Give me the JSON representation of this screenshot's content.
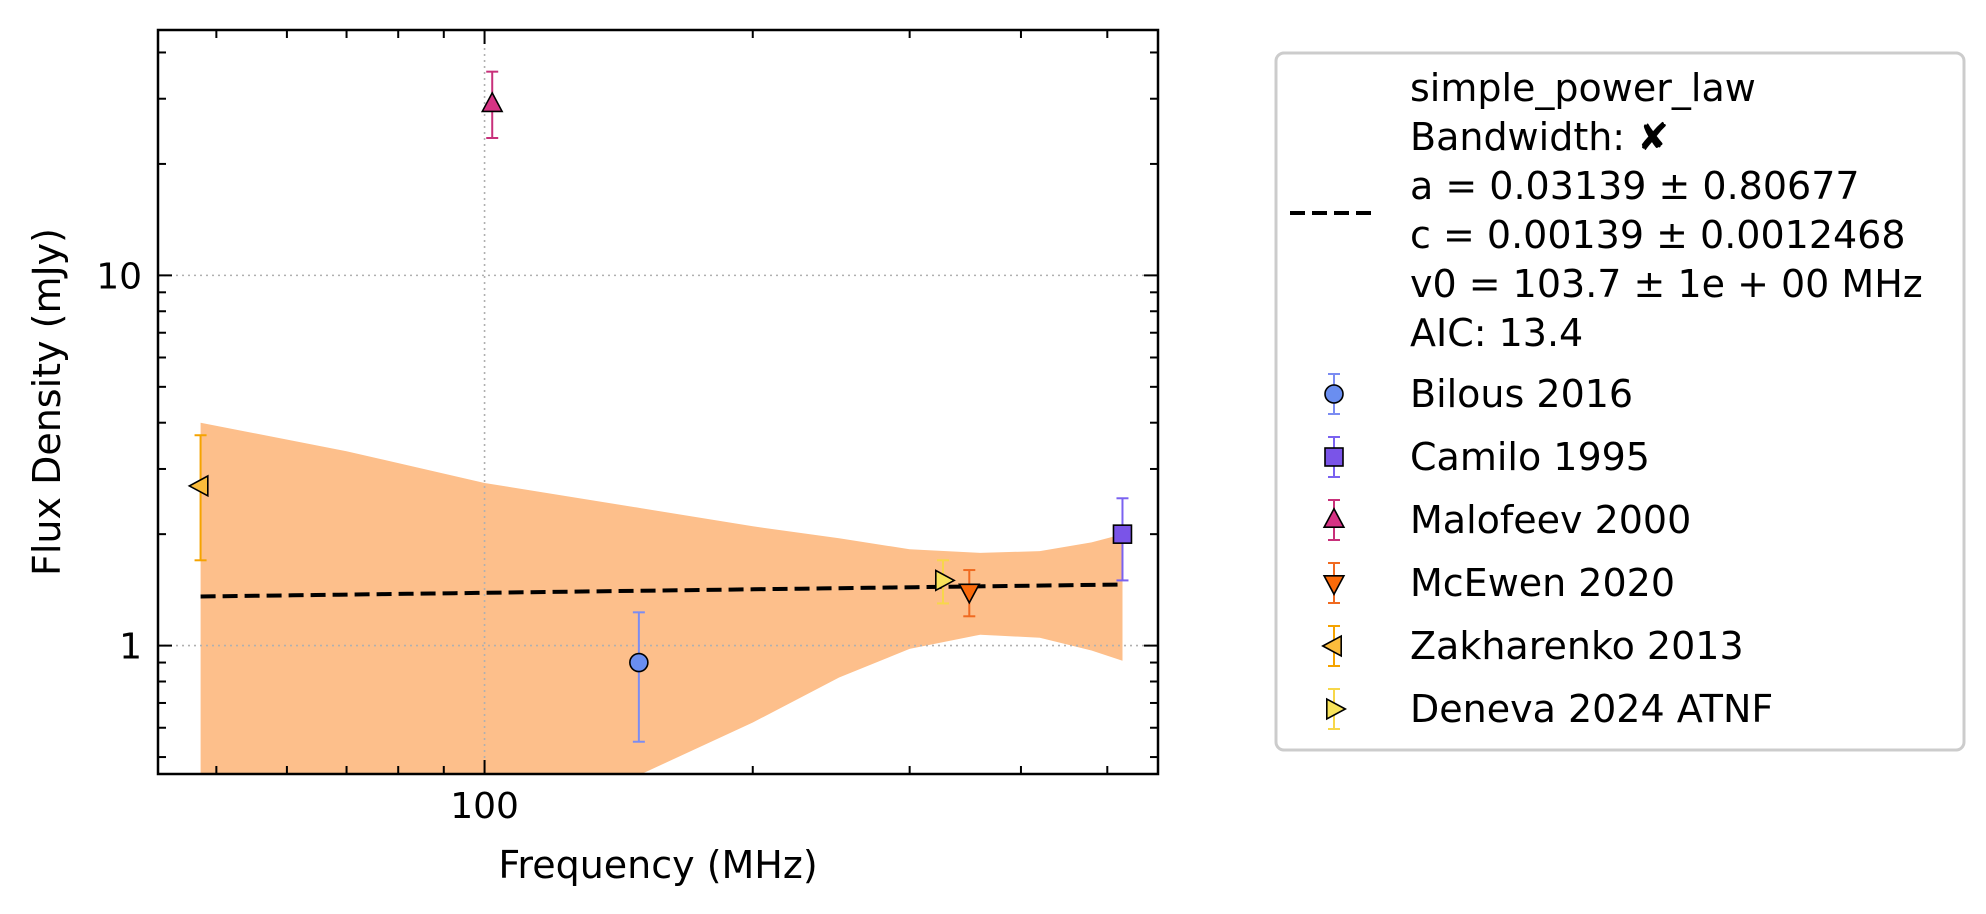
{
  "chart_data": {
    "type": "scatter",
    "xlabel": "Frequency (MHz)",
    "ylabel": "Flux Density (mJy)",
    "xscale": "log",
    "yscale": "log",
    "xlim": [
      43,
      570
    ],
    "ylim": [
      0.45,
      46
    ],
    "xticks": [
      {
        "value": 100,
        "label": "100"
      }
    ],
    "yticks": [
      {
        "value": 1,
        "label": "1"
      },
      {
        "value": 10,
        "label": "10"
      }
    ],
    "grid": true,
    "legend_position": "right",
    "fit": {
      "legend_lines": [
        "simple_power_law",
        "Bandwidth: ✘",
        "a = 0.03139 ± 0.80677",
        "c = 0.00139 ± 0.0012468",
        "v0 = 103.7 ± 1e + 00 MHz",
        "AIC: 13.4"
      ],
      "a": 0.03139,
      "c": 0.00139,
      "v0": 103.7,
      "color": "#000000",
      "line_style": "dashed",
      "band_color": "#fdbf8b",
      "band": {
        "x": [
          48,
          70,
          100,
          150,
          200,
          250,
          300,
          360,
          420,
          480,
          520
        ],
        "lower": [
          0.45,
          0.45,
          0.45,
          0.45,
          0.62,
          0.82,
          0.98,
          1.07,
          1.05,
          0.97,
          0.91
        ],
        "upper": [
          4.0,
          3.35,
          2.75,
          2.35,
          2.1,
          1.95,
          1.82,
          1.78,
          1.8,
          1.9,
          2.0
        ]
      }
    },
    "series": [
      {
        "name": "Bilous 2016",
        "marker": "circle",
        "color": "#6a8ef0",
        "errcolor": "#7b8cf2",
        "points": [
          {
            "x": 149,
            "y": 0.9,
            "yerr": [
              0.35,
              0.33
            ]
          }
        ]
      },
      {
        "name": "Camilo 1995",
        "marker": "square",
        "color": "#7a54e8",
        "errcolor": "#7a62f0",
        "points": [
          {
            "x": 520,
            "y": 2.0,
            "yerr": [
              0.5,
              0.5
            ]
          }
        ]
      },
      {
        "name": "Malofeev 2000",
        "marker": "triangle-up",
        "color": "#d63384",
        "errcolor": "#c8307a",
        "points": [
          {
            "x": 102,
            "y": 29,
            "yerr": [
              5.5,
              6.5
            ]
          }
        ]
      },
      {
        "name": "McEwen 2020",
        "marker": "triangle-down",
        "color": "#fa6a0a",
        "errcolor": "#f06a20",
        "points": [
          {
            "x": 350,
            "y": 1.4,
            "yerr": [
              0.2,
              0.2
            ]
          }
        ]
      },
      {
        "name": "Zakharenko 2013",
        "marker": "triangle-left",
        "color": "#fbbc3c",
        "errcolor": "#f5a300",
        "points": [
          {
            "x": 48,
            "y": 2.7,
            "yerr": [
              1.0,
              1.0
            ]
          }
        ]
      },
      {
        "name": "Deneva 2024 ATNF",
        "marker": "triangle-right",
        "color": "#f8e35a",
        "errcolor": "#f7d74a",
        "points": [
          {
            "x": 327,
            "y": 1.5,
            "yerr": [
              0.2,
              0.2
            ]
          }
        ]
      }
    ]
  }
}
